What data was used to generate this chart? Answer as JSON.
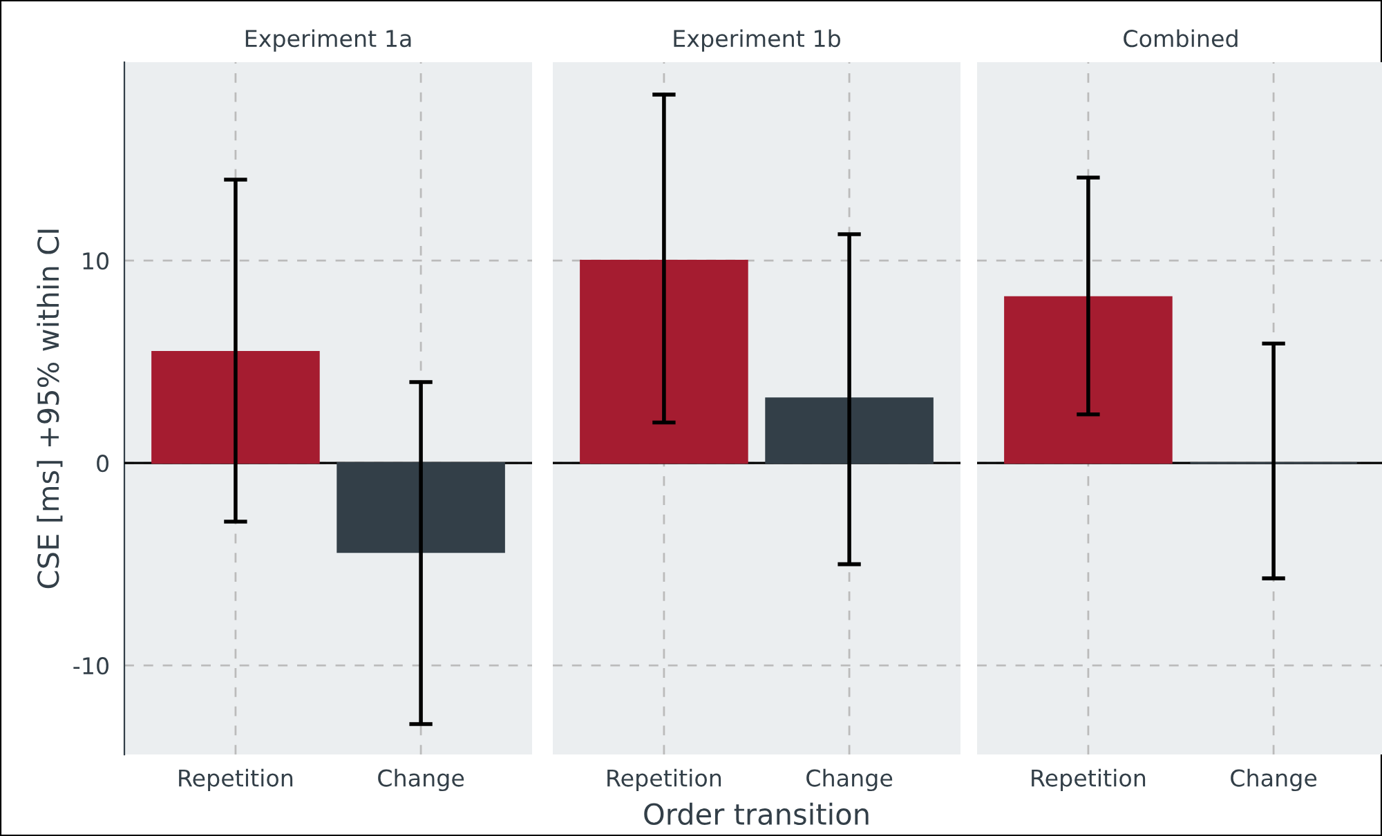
{
  "chart_data": [
    {
      "type": "bar",
      "title": "Experiment 1a",
      "ylabel": "CSE [ms] +95% within CI",
      "categories": [
        "Repetition",
        "Change"
      ],
      "values": [
        5.5,
        -4.4
      ],
      "colors": [
        "#a51c30",
        "#333f48"
      ],
      "errors": [
        [
          -2.9,
          14.0
        ],
        [
          -12.9,
          4.0
        ]
      ],
      "ylim": [
        -14.4,
        19.8
      ],
      "yticks": [
        -10,
        0,
        10
      ],
      "grid": true,
      "ref_lines": [
        {
          "axis": "y",
          "value": 0,
          "color": "#000000"
        }
      ]
    },
    {
      "type": "bar",
      "title": "Experiment 1b",
      "xlabel": "Order transition",
      "categories": [
        "Repetition",
        "Change"
      ],
      "values": [
        10.0,
        3.2
      ],
      "colors": [
        "#a51c30",
        "#333f48"
      ],
      "errors": [
        [
          2.0,
          18.2
        ],
        [
          -5.0,
          11.3
        ]
      ],
      "ylim": [
        -14.4,
        19.8
      ],
      "yticks": [
        -10,
        0,
        10
      ],
      "tick_labels": "x",
      "grid": true,
      "ref_lines": [
        {
          "axis": "y",
          "value": 0,
          "color": "#000000"
        }
      ]
    },
    {
      "type": "bar",
      "title": "Combined",
      "categories": [
        "Repetition",
        "Change"
      ],
      "values": [
        8.2,
        0.0
      ],
      "colors": [
        "#a51c30",
        "#333f48"
      ],
      "errors": [
        [
          2.4,
          14.1
        ],
        [
          -5.7,
          5.9
        ]
      ],
      "ylim": [
        -14.4,
        19.8
      ],
      "yticks": [
        -10,
        0,
        10
      ],
      "tick_labels": "x",
      "grid": true,
      "ref_lines": [
        {
          "axis": "y",
          "value": 0,
          "color": "#000000"
        }
      ]
    }
  ]
}
